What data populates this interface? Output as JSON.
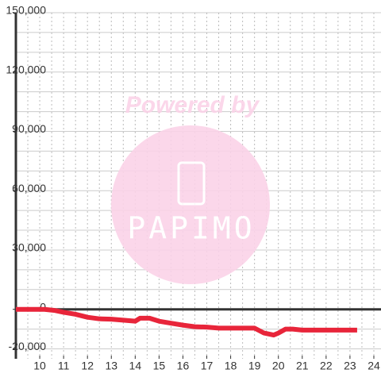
{
  "chart_data": {
    "type": "line",
    "watermark": {
      "text": "Powered by",
      "logo": "PAPIMO"
    },
    "xlim": [
      9,
      24.3
    ],
    "ylim": [
      -25000,
      150000
    ],
    "xticks": [
      10,
      11,
      12,
      13,
      14,
      15,
      16,
      17,
      18,
      19,
      20,
      21,
      22,
      23,
      24
    ],
    "xgrid": [
      9.5,
      10,
      10.5,
      11,
      11.5,
      12,
      12.5,
      13,
      13.5,
      14,
      14.5,
      15,
      15.5,
      16,
      16.5,
      17,
      17.5,
      18,
      18.5,
      19,
      19.5,
      20,
      20.5,
      21,
      21.5,
      22,
      22.5,
      23,
      23.5,
      24
    ],
    "yticks": [
      {
        "value": -20000,
        "label": "-20,000"
      },
      0,
      {
        "value": 30000,
        "label": "30,000"
      },
      {
        "value": 60000,
        "label": "60,000"
      },
      {
        "value": 90000,
        "label": "90,000"
      },
      {
        "value": 120000,
        "label": "120,000"
      },
      {
        "value": 150000,
        "label": "150,000"
      }
    ],
    "ygrid": [
      -20000,
      -10000,
      10000,
      20000,
      30000,
      40000,
      50000,
      60000,
      70000,
      80000,
      90000,
      100000,
      110000,
      120000,
      130000,
      140000,
      150000
    ],
    "series": [
      {
        "color": "#e8253a",
        "x": [
          9,
          10.2,
          10.6,
          11,
          11.5,
          12,
          12.5,
          13,
          13.5,
          14,
          14.2,
          14.6,
          15,
          15.5,
          16,
          16.5,
          17,
          17.5,
          18,
          18.5,
          19,
          19.4,
          19.8,
          20,
          20.3,
          20.6,
          21,
          22,
          23.3
        ],
        "values": [
          0,
          0,
          -500,
          -1500,
          -2500,
          -4000,
          -4800,
          -5000,
          -5500,
          -6000,
          -4500,
          -4500,
          -6000,
          -7000,
          -8000,
          -8800,
          -9000,
          -9500,
          -9500,
          -9500,
          -9500,
          -12000,
          -13000,
          -12000,
          -10000,
          -10000,
          -10500,
          -10500,
          -10500
        ]
      }
    ],
    "grid": true
  }
}
